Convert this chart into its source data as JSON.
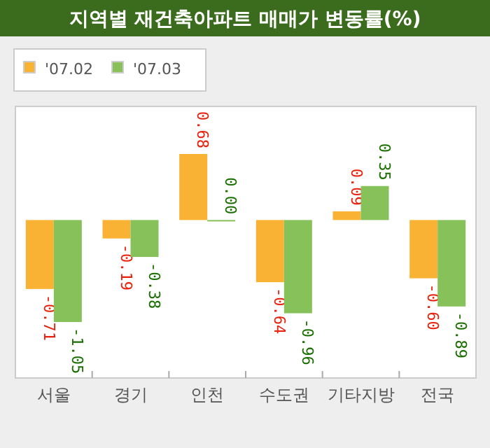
{
  "chart_data": {
    "type": "bar",
    "title": "지역별 재건축아파트 매매가 변동률(%)",
    "categories": [
      "서울",
      "경기",
      "인천",
      "수도권",
      "기타지방",
      "전국"
    ],
    "series": [
      {
        "name": "'07.02",
        "color": "#f9b233",
        "values": [
          -0.71,
          -0.19,
          0.68,
          -0.64,
          0.09,
          -0.6
        ],
        "value_labels": [
          "-0.71",
          "-0.19",
          "0.68",
          "-0.64",
          "0.09",
          "-0.60"
        ]
      },
      {
        "name": "'07.03",
        "color": "#86c15a",
        "values": [
          -1.05,
          -0.38,
          0.0,
          -0.96,
          0.35,
          -0.89
        ],
        "value_labels": [
          "-1.05",
          "-0.38",
          "0.00",
          "-0.96",
          "0.35",
          "-0.89"
        ]
      }
    ],
    "legend": "top left",
    "grid": false
  }
}
